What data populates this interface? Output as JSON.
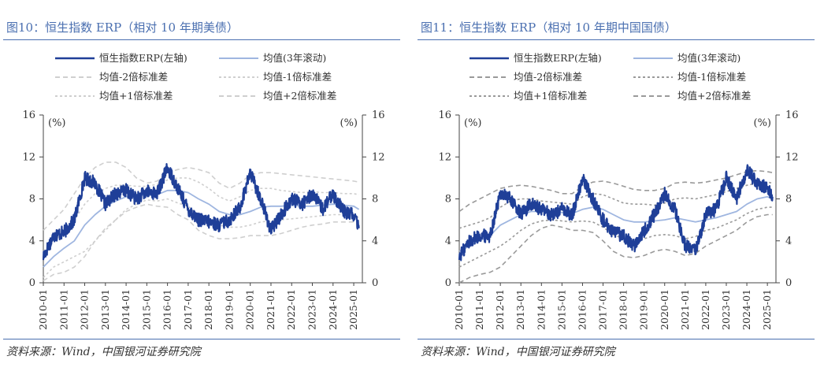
{
  "charts": [
    {
      "title": "图10：恒生指数 ERP（相对 10 年期美债）",
      "source": "资料来源：Wind，中国银河证券研究院",
      "legend": [
        {
          "label": "恒生指数ERP(左轴)",
          "style": "erp"
        },
        {
          "label": "均值(3年滚动)",
          "style": "mean"
        },
        {
          "label": "均值-2倍标准差",
          "style": "m2"
        },
        {
          "label": "均值-1倍标准差",
          "style": "m1"
        },
        {
          "label": "均值+1倍标准差",
          "style": "p1"
        },
        {
          "label": "均值+2倍标准差",
          "style": "p2"
        }
      ],
      "left_unit": "(%)",
      "right_unit": "(%)",
      "left_ticks": [
        "16",
        "12",
        "8",
        "4",
        "0"
      ],
      "right_ticks": [
        "16",
        "12",
        "8",
        "4",
        "0"
      ],
      "x_ticks": [
        "2010-01",
        "2011-01",
        "2012-01",
        "2013-01",
        "2014-01",
        "2015-01",
        "2016-01",
        "2017-01",
        "2018-01",
        "2019-01",
        "2020-01",
        "2021-01",
        "2022-01",
        "2023-01",
        "2024-01",
        "2025-01"
      ]
    },
    {
      "title": "图11：恒生指数 ERP（相对 10 年期中国国债）",
      "source": "资料来源：Wind，中国银河证券研究院",
      "legend": [
        {
          "label": "恒生指数ERP(左轴)",
          "style": "erp"
        },
        {
          "label": "均值(3年滚动)",
          "style": "mean"
        },
        {
          "label": "均值-2倍标准差",
          "style": "m2"
        },
        {
          "label": "均值-1倍标准差",
          "style": "m1"
        },
        {
          "label": "均值+1倍标准差",
          "style": "p1"
        },
        {
          "label": "均值+2倍标准差",
          "style": "p2"
        }
      ],
      "left_unit": "(%)",
      "right_unit": "(%)",
      "left_ticks": [
        "16",
        "12",
        "8",
        "4",
        "0"
      ],
      "right_ticks": [
        "16",
        "12",
        "8",
        "4",
        "0"
      ],
      "x_ticks": [
        "2010-01",
        "2011-01",
        "2012-01",
        "2013-01",
        "2014-01",
        "2015-01",
        "2016-01",
        "2017-01",
        "2018-01",
        "2019-01",
        "2020-01",
        "2021-01",
        "2022-01",
        "2023-01",
        "2024-01",
        "2025-01"
      ]
    }
  ],
  "colors": {
    "erp": "#1f3f98",
    "mean": "#9fb6e0",
    "m2": "#cfcfcf",
    "m1": "#cfcfcf",
    "p1": "#cfcfcf",
    "p2": "#cfcfcf",
    "m2_b": "#9a9a9a",
    "m1_b": "#9a9a9a",
    "p1_b": "#9a9a9a",
    "p2_b": "#9a9a9a"
  },
  "chart_data": [
    {
      "type": "line",
      "title": "图10：恒生指数 ERP（相对 10 年期美债）",
      "xlabel": "",
      "ylabel": "(%)",
      "ylim": [
        0,
        16
      ],
      "x": [
        "2010-01",
        "2010-07",
        "2011-01",
        "2011-07",
        "2012-01",
        "2012-07",
        "2013-01",
        "2013-07",
        "2014-01",
        "2014-07",
        "2015-01",
        "2015-07",
        "2016-01",
        "2016-07",
        "2017-01",
        "2017-07",
        "2018-01",
        "2018-07",
        "2019-01",
        "2019-07",
        "2020-01",
        "2020-07",
        "2021-01",
        "2021-07",
        "2022-01",
        "2022-07",
        "2023-01",
        "2023-07",
        "2024-01",
        "2024-07",
        "2025-01",
        "2025-04"
      ],
      "series": [
        {
          "name": "恒生指数ERP(左轴)",
          "values": [
            2.5,
            4.5,
            4.8,
            6.0,
            10.0,
            9.5,
            7.5,
            8.5,
            8.8,
            8.0,
            8.7,
            8.5,
            11.0,
            9.0,
            7.0,
            6.0,
            5.8,
            5.5,
            6.0,
            7.2,
            10.5,
            8.0,
            5.0,
            6.5,
            8.0,
            7.5,
            8.5,
            7.0,
            8.5,
            6.8,
            6.5,
            5.2
          ]
        },
        {
          "name": "均值(3年滚动)",
          "values": [
            1.5,
            2.5,
            3.3,
            4.0,
            5.5,
            6.5,
            7.3,
            7.8,
            8.2,
            8.4,
            8.3,
            8.4,
            8.8,
            8.8,
            8.6,
            8.0,
            7.5,
            6.8,
            6.5,
            6.5,
            6.8,
            7.2,
            7.3,
            7.3,
            7.4,
            7.3,
            7.3,
            7.4,
            7.5,
            7.4,
            7.3,
            7.0
          ]
        },
        {
          "name": "均值-2倍标准差",
          "values": [
            0.2,
            0.8,
            1.0,
            1.5,
            2.5,
            4.0,
            5.2,
            6.0,
            6.8,
            7.2,
            7.5,
            7.3,
            7.2,
            6.5,
            6.0,
            5.0,
            4.5,
            4.2,
            4.2,
            4.3,
            4.5,
            4.5,
            4.5,
            4.7,
            5.0,
            5.3,
            5.5,
            5.6,
            5.8,
            5.8,
            5.8,
            5.5
          ]
        },
        {
          "name": "均值-1倍标准差",
          "values": [
            0.5,
            1.5,
            2.0,
            2.5,
            3.0,
            4.0,
            5.0,
            6.0,
            7.0,
            7.5,
            7.9,
            7.8,
            8.0,
            7.6,
            7.3,
            6.5,
            6.0,
            5.5,
            5.3,
            5.3,
            5.5,
            5.8,
            5.9,
            6.0,
            6.1,
            6.2,
            6.3,
            6.4,
            6.5,
            6.5,
            6.5,
            6.2
          ]
        },
        {
          "name": "均值+1倍标准差",
          "values": [
            3.0,
            4.0,
            4.8,
            6.0,
            7.5,
            8.5,
            9.0,
            9.3,
            9.3,
            9.2,
            9.2,
            9.4,
            9.8,
            10.0,
            10.0,
            9.6,
            9.0,
            8.2,
            7.8,
            8.2,
            8.8,
            9.0,
            9.0,
            8.8,
            8.7,
            8.6,
            8.7,
            8.6,
            8.6,
            8.5,
            8.5,
            8.4
          ]
        },
        {
          "name": "均值+2倍标准差",
          "values": [
            5.0,
            6.0,
            7.0,
            8.5,
            10.0,
            11.0,
            11.5,
            11.5,
            11.0,
            10.0,
            9.5,
            9.7,
            10.5,
            10.8,
            11.0,
            10.8,
            10.5,
            9.5,
            9.0,
            9.5,
            10.3,
            10.5,
            10.5,
            10.4,
            10.3,
            10.2,
            10.1,
            10.0,
            9.9,
            9.8,
            9.7,
            9.6
          ]
        }
      ]
    },
    {
      "type": "line",
      "title": "图11：恒生指数 ERP（相对 10 年期中国国债）",
      "xlabel": "",
      "ylabel": "(%)",
      "ylim": [
        0,
        16
      ],
      "x": [
        "2010-01",
        "2010-07",
        "2011-01",
        "2011-07",
        "2012-01",
        "2012-07",
        "2013-01",
        "2013-07",
        "2014-01",
        "2014-07",
        "2015-01",
        "2015-07",
        "2016-01",
        "2016-07",
        "2017-01",
        "2017-07",
        "2018-01",
        "2018-07",
        "2019-01",
        "2019-07",
        "2020-01",
        "2020-07",
        "2021-01",
        "2021-07",
        "2022-01",
        "2022-07",
        "2023-01",
        "2023-07",
        "2024-01",
        "2024-07",
        "2025-01",
        "2025-04"
      ],
      "series": [
        {
          "name": "恒生指数ERP(左轴)",
          "values": [
            2.5,
            4.0,
            4.5,
            4.5,
            8.5,
            8.0,
            6.5,
            7.5,
            7.0,
            6.5,
            7.0,
            6.5,
            10.0,
            8.0,
            6.0,
            4.8,
            4.5,
            3.5,
            5.0,
            6.5,
            8.5,
            7.0,
            3.5,
            3.0,
            6.5,
            7.0,
            10.0,
            8.0,
            10.8,
            9.5,
            9.0,
            8.2
          ]
        },
        {
          "name": "均值(3年滚动)",
          "values": [
            3.0,
            3.5,
            4.0,
            4.5,
            5.5,
            6.0,
            6.5,
            6.8,
            6.8,
            6.8,
            6.7,
            6.6,
            7.0,
            7.2,
            7.0,
            6.5,
            6.0,
            5.8,
            5.8,
            5.9,
            6.0,
            6.2,
            6.0,
            5.8,
            6.0,
            6.2,
            6.5,
            6.8,
            7.5,
            8.0,
            8.2,
            8.0
          ]
        },
        {
          "name": "均值-2倍标准差",
          "values": [
            0.0,
            0.5,
            0.8,
            1.0,
            1.5,
            2.5,
            3.5,
            4.5,
            5.2,
            5.5,
            5.3,
            5.0,
            5.0,
            4.8,
            4.0,
            3.0,
            2.5,
            2.4,
            2.6,
            3.0,
            3.2,
            3.0,
            2.6,
            2.8,
            3.5,
            4.0,
            4.5,
            5.0,
            5.8,
            6.3,
            6.5,
            6.5
          ]
        },
        {
          "name": "均值-1倍标准差",
          "values": [
            1.5,
            2.0,
            2.5,
            3.0,
            3.5,
            4.2,
            5.0,
            5.6,
            5.9,
            6.0,
            5.9,
            5.8,
            5.9,
            5.8,
            5.3,
            4.6,
            4.2,
            4.0,
            4.2,
            4.5,
            4.6,
            4.5,
            4.2,
            4.4,
            5.0,
            5.2,
            5.6,
            6.0,
            6.6,
            7.0,
            7.2,
            7.2
          ]
        },
        {
          "name": "均值+1倍标准差",
          "values": [
            5.2,
            5.5,
            5.8,
            6.2,
            7.2,
            7.8,
            8.0,
            8.0,
            7.8,
            7.7,
            7.6,
            7.5,
            8.2,
            8.5,
            8.4,
            8.0,
            7.6,
            7.5,
            7.5,
            7.4,
            7.6,
            8.0,
            8.1,
            8.0,
            8.2,
            8.4,
            8.7,
            9.0,
            9.3,
            9.5,
            9.6,
            9.5
          ]
        },
        {
          "name": "均值+2倍标准差",
          "values": [
            6.8,
            7.5,
            8.0,
            8.5,
            9.0,
            9.2,
            9.3,
            9.2,
            9.0,
            8.8,
            8.5,
            8.5,
            9.2,
            9.6,
            9.7,
            9.5,
            9.2,
            8.9,
            8.8,
            8.8,
            9.0,
            9.5,
            9.6,
            9.5,
            9.6,
            9.8,
            10.0,
            10.3,
            10.6,
            10.7,
            10.6,
            10.5
          ]
        }
      ]
    }
  ]
}
